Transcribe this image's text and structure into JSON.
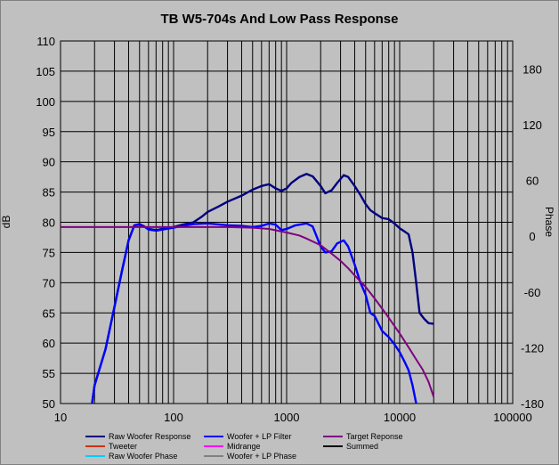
{
  "chart_data": {
    "type": "line",
    "title": "TB W5-704s  And Low Pass Response",
    "xlabel": "",
    "ylabel": "dB",
    "y2label": "Phase",
    "x_scale": "log",
    "xlim": [
      10,
      100000
    ],
    "ylim": [
      50,
      110
    ],
    "y2lim": [
      -180,
      210
    ],
    "x_tick_labels": [
      "10",
      "100",
      "1000",
      "10000",
      "100000"
    ],
    "y_tick_labels": [
      "50",
      "55",
      "60",
      "65",
      "70",
      "75",
      "80",
      "85",
      "90",
      "95",
      "100",
      "105",
      "110"
    ],
    "y2_tick_labels": [
      "-180",
      "-120",
      "-60",
      "0",
      "60",
      "120",
      "180"
    ],
    "grid": true,
    "legend_placement": "bottom",
    "series": [
      {
        "name": "Raw Woofer Response",
        "color": "#000080",
        "axis": "left",
        "points": [
          [
            19,
            50
          ],
          [
            20,
            53
          ],
          [
            25,
            59
          ],
          [
            30,
            66
          ],
          [
            35,
            72
          ],
          [
            40,
            77
          ],
          [
            45,
            79.5
          ],
          [
            50,
            79.7
          ],
          [
            55,
            79.3
          ],
          [
            60,
            78.9
          ],
          [
            70,
            78.7
          ],
          [
            80,
            78.9
          ],
          [
            100,
            79.2
          ],
          [
            120,
            79.6
          ],
          [
            150,
            80
          ],
          [
            180,
            81
          ],
          [
            200,
            81.7
          ],
          [
            250,
            82.6
          ],
          [
            300,
            83.4
          ],
          [
            400,
            84.4
          ],
          [
            500,
            85.4
          ],
          [
            600,
            86
          ],
          [
            700,
            86.3
          ],
          [
            800,
            85.6
          ],
          [
            900,
            85.2
          ],
          [
            1000,
            85.6
          ],
          [
            1100,
            86.5
          ],
          [
            1300,
            87.5
          ],
          [
            1500,
            88
          ],
          [
            1700,
            87.6
          ],
          [
            2000,
            86
          ],
          [
            2200,
            84.8
          ],
          [
            2500,
            85.3
          ],
          [
            2800,
            86.5
          ],
          [
            3200,
            87.8
          ],
          [
            3500,
            87.5
          ],
          [
            4000,
            86
          ],
          [
            4500,
            84.5
          ],
          [
            5000,
            83
          ],
          [
            5500,
            82
          ],
          [
            6000,
            81.5
          ],
          [
            7000,
            80.7
          ],
          [
            8000,
            80.5
          ],
          [
            9000,
            79.8
          ],
          [
            10000,
            79
          ],
          [
            11000,
            78.5
          ],
          [
            12000,
            78
          ],
          [
            13000,
            75
          ],
          [
            14000,
            70
          ],
          [
            15000,
            65
          ],
          [
            16500,
            64
          ],
          [
            18000,
            63.3
          ],
          [
            20000,
            63.2
          ]
        ]
      },
      {
        "name": "Woofer + LP Filter",
        "color": "#0000ff",
        "axis": "left",
        "points": [
          [
            19,
            50
          ],
          [
            20,
            53
          ],
          [
            25,
            59
          ],
          [
            30,
            66
          ],
          [
            35,
            72
          ],
          [
            40,
            77
          ],
          [
            45,
            79.5
          ],
          [
            50,
            79.6
          ],
          [
            55,
            79.3
          ],
          [
            60,
            78.8
          ],
          [
            70,
            78.6
          ],
          [
            80,
            78.8
          ],
          [
            100,
            79.1
          ],
          [
            120,
            79.4
          ],
          [
            150,
            79.7
          ],
          [
            200,
            79.8
          ],
          [
            300,
            79.5
          ],
          [
            400,
            79.4
          ],
          [
            500,
            79.2
          ],
          [
            600,
            79.4
          ],
          [
            700,
            79.8
          ],
          [
            800,
            79.6
          ],
          [
            900,
            78.7
          ],
          [
            1000,
            78.9
          ],
          [
            1200,
            79.5
          ],
          [
            1500,
            79.8
          ],
          [
            1700,
            79.3
          ],
          [
            2000,
            76
          ],
          [
            2200,
            75
          ],
          [
            2500,
            75.2
          ],
          [
            2800,
            76.5
          ],
          [
            3200,
            77
          ],
          [
            3500,
            76
          ],
          [
            4000,
            73
          ],
          [
            4500,
            70
          ],
          [
            5000,
            68
          ],
          [
            5500,
            65
          ],
          [
            6000,
            64.5
          ],
          [
            7000,
            62
          ],
          [
            8000,
            61
          ],
          [
            9000,
            59.8
          ],
          [
            10000,
            58.5
          ],
          [
            11000,
            57
          ],
          [
            12000,
            55.5
          ],
          [
            13000,
            53
          ],
          [
            14000,
            50
          ]
        ]
      },
      {
        "name": "Target Reponse",
        "color": "#800080",
        "axis": "left",
        "points": [
          [
            10,
            79.2
          ],
          [
            50,
            79.2
          ],
          [
            100,
            79.2
          ],
          [
            200,
            79.2
          ],
          [
            300,
            79.2
          ],
          [
            500,
            79.1
          ],
          [
            700,
            78.9
          ],
          [
            1000,
            78.3
          ],
          [
            1300,
            77.8
          ],
          [
            1500,
            77.3
          ],
          [
            2000,
            76.2
          ],
          [
            2500,
            74.8
          ],
          [
            3000,
            73.6
          ],
          [
            3500,
            72.4
          ],
          [
            4000,
            71.2
          ],
          [
            5000,
            69.3
          ],
          [
            6000,
            67.4
          ],
          [
            7000,
            65.7
          ],
          [
            8000,
            64.2
          ],
          [
            10000,
            61.6
          ],
          [
            12000,
            59.3
          ],
          [
            14000,
            57.3
          ],
          [
            16000,
            55.6
          ],
          [
            18000,
            53.6
          ],
          [
            20000,
            51.1
          ]
        ]
      },
      {
        "name": "Tweeter",
        "color": "#cc3300",
        "axis": "left",
        "points": []
      },
      {
        "name": "Midrange",
        "color": "#ff00ff",
        "axis": "left",
        "points": []
      },
      {
        "name": "Summed",
        "color": "#000000",
        "axis": "left",
        "points": []
      },
      {
        "name": "Raw Woofer Phase",
        "color": "#00ccff",
        "axis": "right",
        "points": []
      },
      {
        "name": "Woofer + LP  Phase",
        "color": "#808080",
        "axis": "right",
        "points": []
      }
    ]
  }
}
